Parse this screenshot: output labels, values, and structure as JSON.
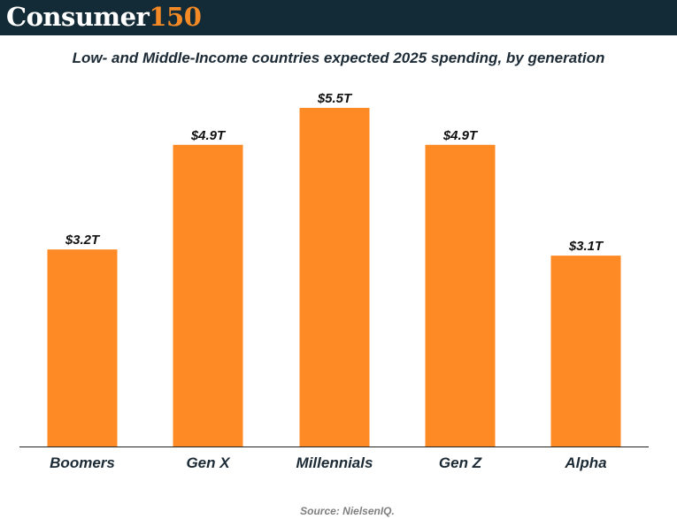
{
  "header": {
    "logo_word": "Consumer",
    "logo_number": "150"
  },
  "colors": {
    "header_bg": "#132a37",
    "accent": "#f48a25",
    "bar": "#fd8a25",
    "axis": "#222222"
  },
  "chart_data": {
    "type": "bar",
    "title": "Low- and Middle-Income countries expected 2025 spending, by generation",
    "categories": [
      "Boomers",
      "Gen X",
      "Millennials",
      "Gen Z",
      "Alpha"
    ],
    "values": [
      3.2,
      4.9,
      5.5,
      4.9,
      3.1
    ],
    "value_labels": [
      "$3.2T",
      "$4.9T",
      "$5.5T",
      "$4.9T",
      "$3.1T"
    ],
    "unit": "trillion USD",
    "ylim": [
      0,
      5.5
    ],
    "grid": false,
    "legend": "none"
  },
  "source": "Source: NielsenIQ."
}
